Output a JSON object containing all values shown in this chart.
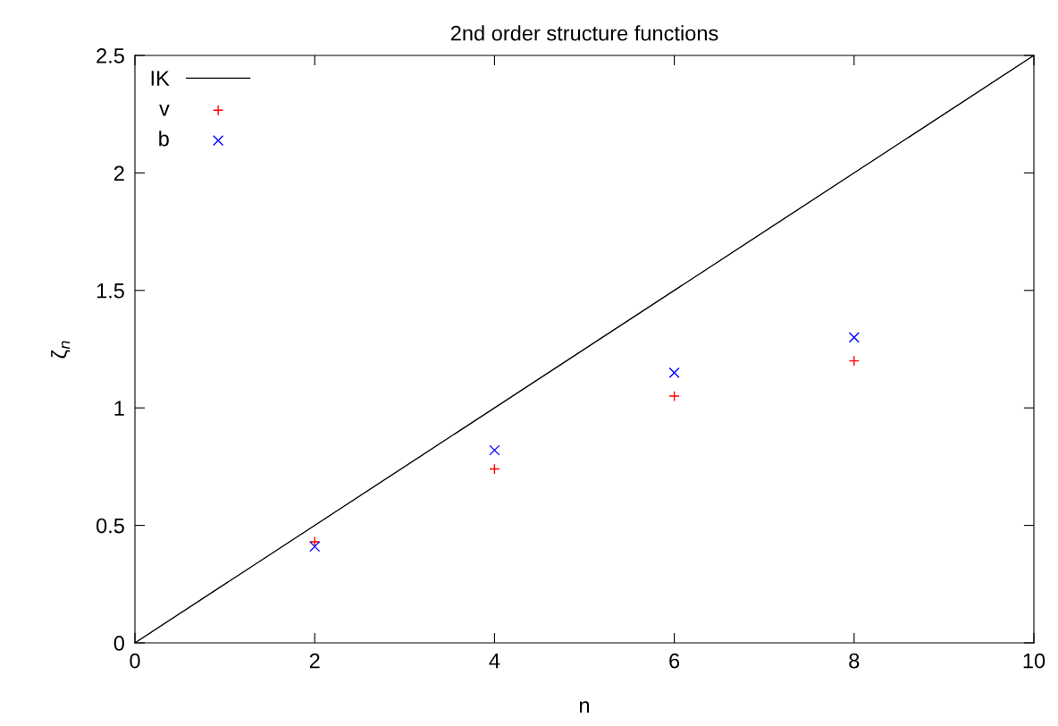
{
  "chart_data": {
    "type": "scatter",
    "title": "2nd order structure functions",
    "xlabel": "n",
    "ylabel": "ζ$_{n}$",
    "series": [
      {
        "name": "IK",
        "type": "line",
        "color": "#000000",
        "x": [
          0,
          10
        ],
        "values": [
          0,
          2.5
        ],
        "marker": "none",
        "line_style": "solid"
      },
      {
        "name": "v",
        "color": "#ff0000",
        "x": [
          2,
          4,
          6,
          8
        ],
        "values": [
          0.43,
          0.74,
          1.05,
          1.2
        ],
        "marker": "plus"
      },
      {
        "name": "b",
        "color": "#0000ff",
        "x": [
          2,
          4,
          6,
          8
        ],
        "values": [
          0.41,
          0.82,
          1.15,
          1.3
        ],
        "marker": "cross"
      }
    ],
    "xlim": [
      0,
      10
    ],
    "xticks": [
      0,
      2,
      4,
      6,
      8,
      10
    ],
    "ylim": [
      0,
      2.5
    ],
    "yticks": [
      0,
      0.5,
      1,
      1.5,
      2,
      2.5
    ],
    "grid": false,
    "legend": "top left"
  }
}
